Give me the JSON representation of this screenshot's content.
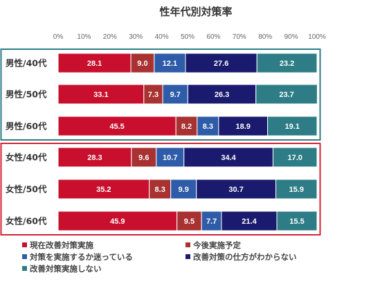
{
  "chart_data": {
    "type": "bar",
    "orientation": "horizontal",
    "stacked": true,
    "percent_stacked": true,
    "title": "性年代別対策率",
    "xlim": [
      0,
      100
    ],
    "x_ticks": [
      "0%",
      "10%",
      "20%",
      "30%",
      "40%",
      "50%",
      "60%",
      "70%",
      "80%",
      "90%",
      "100%"
    ],
    "legend_position": "bottom",
    "grid": false,
    "categories": [
      "男性/40代",
      "男性/50代",
      "男性/60代",
      "女性/40代",
      "女性/50代",
      "女性/60代"
    ],
    "groups": [
      {
        "name": "",
        "categories": [
          0,
          1,
          2
        ],
        "border_color": "#2e7d86"
      },
      {
        "name": "",
        "categories": [
          3,
          4,
          5
        ],
        "border_color": "#d4233a"
      }
    ],
    "series": [
      {
        "name": "現在改善対策実施",
        "color": "#c8102e",
        "values": [
          28.1,
          33.1,
          45.5,
          28.3,
          35.2,
          45.9
        ]
      },
      {
        "name": "今後実施予定",
        "color": "#a83232",
        "values": [
          9.0,
          7.3,
          8.2,
          9.6,
          8.3,
          9.5
        ]
      },
      {
        "name": "対策を実施するか迷っている",
        "color": "#2e5ca8",
        "values": [
          12.1,
          9.7,
          8.3,
          10.7,
          9.9,
          7.7
        ]
      },
      {
        "name": "改善対策の仕方がわからない",
        "color": "#1a1a6e",
        "values": [
          27.6,
          26.3,
          18.9,
          34.4,
          30.7,
          21.4
        ]
      },
      {
        "name": "改善対策実施しない",
        "color": "#2e7d86",
        "values": [
          23.2,
          23.7,
          19.1,
          17.0,
          15.9,
          15.5
        ]
      }
    ],
    "value_labels": [
      [
        "28.1",
        "33.1",
        "45.5",
        "28.3",
        "35.2",
        "45.9"
      ],
      [
        "9.0",
        "7.3",
        "8.2",
        "9.6",
        "8.3",
        "9.5"
      ],
      [
        "12.1",
        "9.7",
        "8.3",
        "10.7",
        "9.9",
        "7.7"
      ],
      [
        "27.6",
        "26.3",
        "18.9",
        "34.4",
        "30.7",
        "21.4"
      ],
      [
        "23.2",
        "23.7",
        "19.1",
        "17.0",
        "15.9",
        "15.5"
      ]
    ]
  }
}
